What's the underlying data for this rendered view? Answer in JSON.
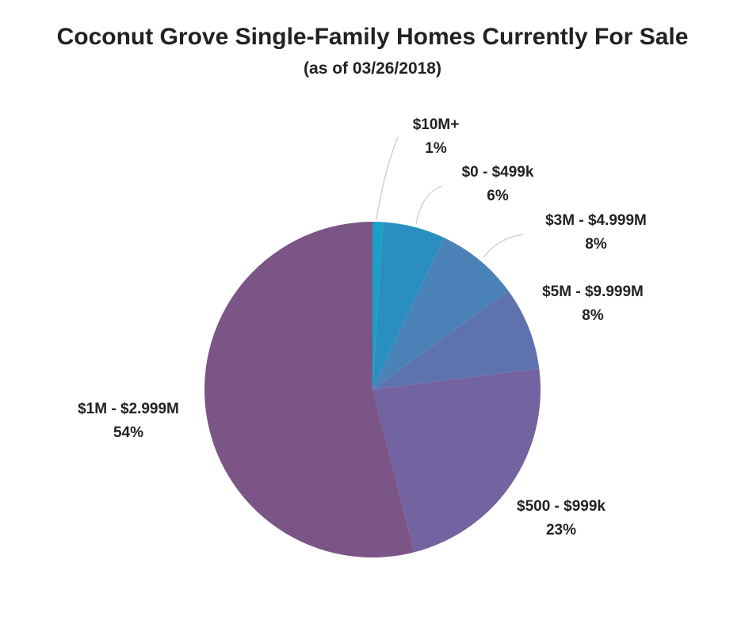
{
  "chart_data": {
    "type": "pie",
    "title": "Coconut Grove Single-Family Homes Currently For Sale",
    "subtitle": "(as of 03/26/2018)",
    "slices": [
      {
        "label": "$10M+",
        "pct_label": "1%",
        "value": 1,
        "color": "#1aa0c8"
      },
      {
        "label": "$0 - $499k",
        "pct_label": "6%",
        "value": 6,
        "color": "#2a8fc0"
      },
      {
        "label": "$3M - $4.999M",
        "pct_label": "8%",
        "value": 8,
        "color": "#4a82b8"
      },
      {
        "label": "$5M - $9.999M",
        "pct_label": "8%",
        "value": 8,
        "color": "#5e72ae"
      },
      {
        "label": "$500 - $999k",
        "pct_label": "23%",
        "value": 23,
        "color": "#7363a0"
      },
      {
        "label": "$1M - $2.999M",
        "pct_label": "54%",
        "value": 54,
        "color": "#7b5586"
      }
    ]
  }
}
